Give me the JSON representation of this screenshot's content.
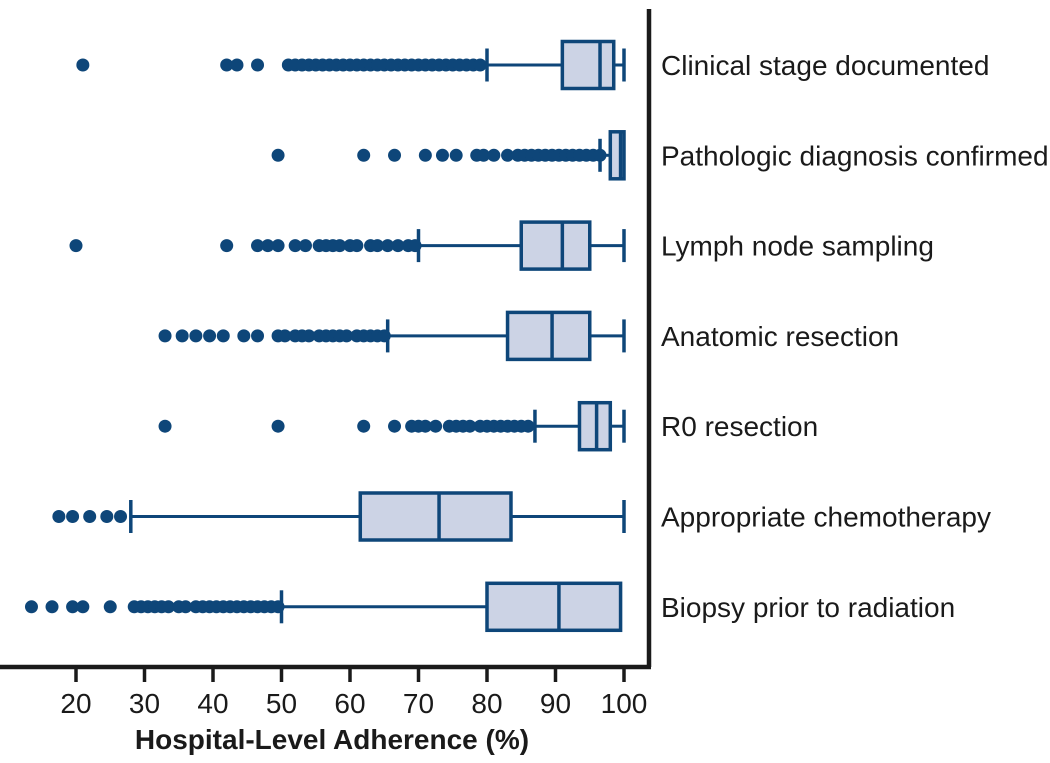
{
  "chart_data": {
    "type": "boxplot",
    "orientation": "horizontal",
    "title": "",
    "xlabel": "Hospital-Level Adherence (%)",
    "ylabel": "",
    "xlim": [
      9,
      104
    ],
    "x_ticks": [
      20,
      30,
      40,
      50,
      60,
      70,
      80,
      90,
      100
    ],
    "grid": false,
    "legend_position": "none",
    "categories": [
      "Clinical stage documented",
      "Pathologic diagnosis confirmed",
      "Lymph node sampling",
      "Anatomic resection",
      "R0 resection",
      "Appropriate chemotherapy",
      "Biopsy prior to radiation"
    ],
    "series": [
      {
        "label": "Clinical stage documented",
        "whisker_low": 80,
        "q1": 91,
        "median": 96.5,
        "q3": 98.5,
        "whisker_high": 100,
        "outliers": [
          21,
          42,
          43.5,
          46.5,
          51,
          52,
          53,
          54,
          55,
          56,
          57,
          58,
          59,
          60,
          61,
          62,
          63,
          64,
          65,
          66,
          67,
          68,
          69,
          70,
          71,
          72,
          73,
          74,
          75,
          76,
          77,
          78,
          79
        ]
      },
      {
        "label": "Pathologic diagnosis confirmed",
        "whisker_low": 96.5,
        "q1": 98,
        "median": 99.5,
        "q3": 100,
        "whisker_high": 100,
        "outliers": [
          49.5,
          62,
          66.5,
          71,
          73.5,
          75.5,
          78.5,
          79.5,
          81,
          83,
          84.5,
          85.5,
          86.5,
          87.5,
          88.5,
          89.5,
          90.5,
          91.5,
          92.5,
          93.5,
          94.5,
          95.5,
          96.5
        ]
      },
      {
        "label": "Lymph node sampling",
        "whisker_low": 70,
        "q1": 85,
        "median": 91,
        "q3": 95,
        "whisker_high": 100,
        "outliers": [
          20,
          42,
          46.5,
          48,
          49.5,
          52,
          53.5,
          55.5,
          56.5,
          57.5,
          58.5,
          60,
          61,
          63,
          64,
          65.5,
          67,
          68.5,
          69.5
        ]
      },
      {
        "label": "Anatomic resection",
        "whisker_low": 65.5,
        "q1": 83,
        "median": 89.5,
        "q3": 95,
        "whisker_high": 100,
        "outliers": [
          33,
          35.5,
          37.5,
          39.5,
          41.5,
          44.5,
          46.5,
          49.5,
          50.5,
          52,
          53,
          54,
          55.5,
          56.5,
          57.5,
          58.5,
          59.5,
          61,
          62,
          63,
          64,
          65
        ]
      },
      {
        "label": "R0 resection",
        "whisker_low": 87,
        "q1": 93.5,
        "median": 96,
        "q3": 98,
        "whisker_high": 100,
        "outliers": [
          33,
          49.5,
          62,
          66.5,
          69,
          70,
          71,
          72.5,
          74.5,
          75.5,
          76.5,
          77.5,
          79,
          80,
          81,
          82,
          83,
          84,
          85,
          86
        ]
      },
      {
        "label": "Appropriate chemotherapy",
        "whisker_low": 28,
        "q1": 61.5,
        "median": 73,
        "q3": 83.5,
        "whisker_high": 100,
        "outliers": [
          17.5,
          19.5,
          22,
          24.5,
          26.5
        ]
      },
      {
        "label": "Biopsy prior to radiation",
        "whisker_low": 50,
        "q1": 80,
        "median": 90.5,
        "q3": 99.5,
        "whisker_high": 99.5,
        "outliers": [
          13.5,
          16.5,
          19.5,
          21,
          25,
          28.5,
          29.5,
          30.5,
          31.5,
          32.5,
          33.5,
          35,
          36,
          37.5,
          38.5,
          39.5,
          40.5,
          41.5,
          42.5,
          43.5,
          44.5,
          45.5,
          46.5,
          47.5,
          48.5,
          49.5
        ]
      }
    ],
    "colors": {
      "box_fill": "#CCD3E5",
      "box_stroke": "#0E4679",
      "whisker": "#0E4679",
      "outlier": "#0E4679",
      "axis": "#1A1A1A",
      "background": "#FFFFFF"
    }
  }
}
